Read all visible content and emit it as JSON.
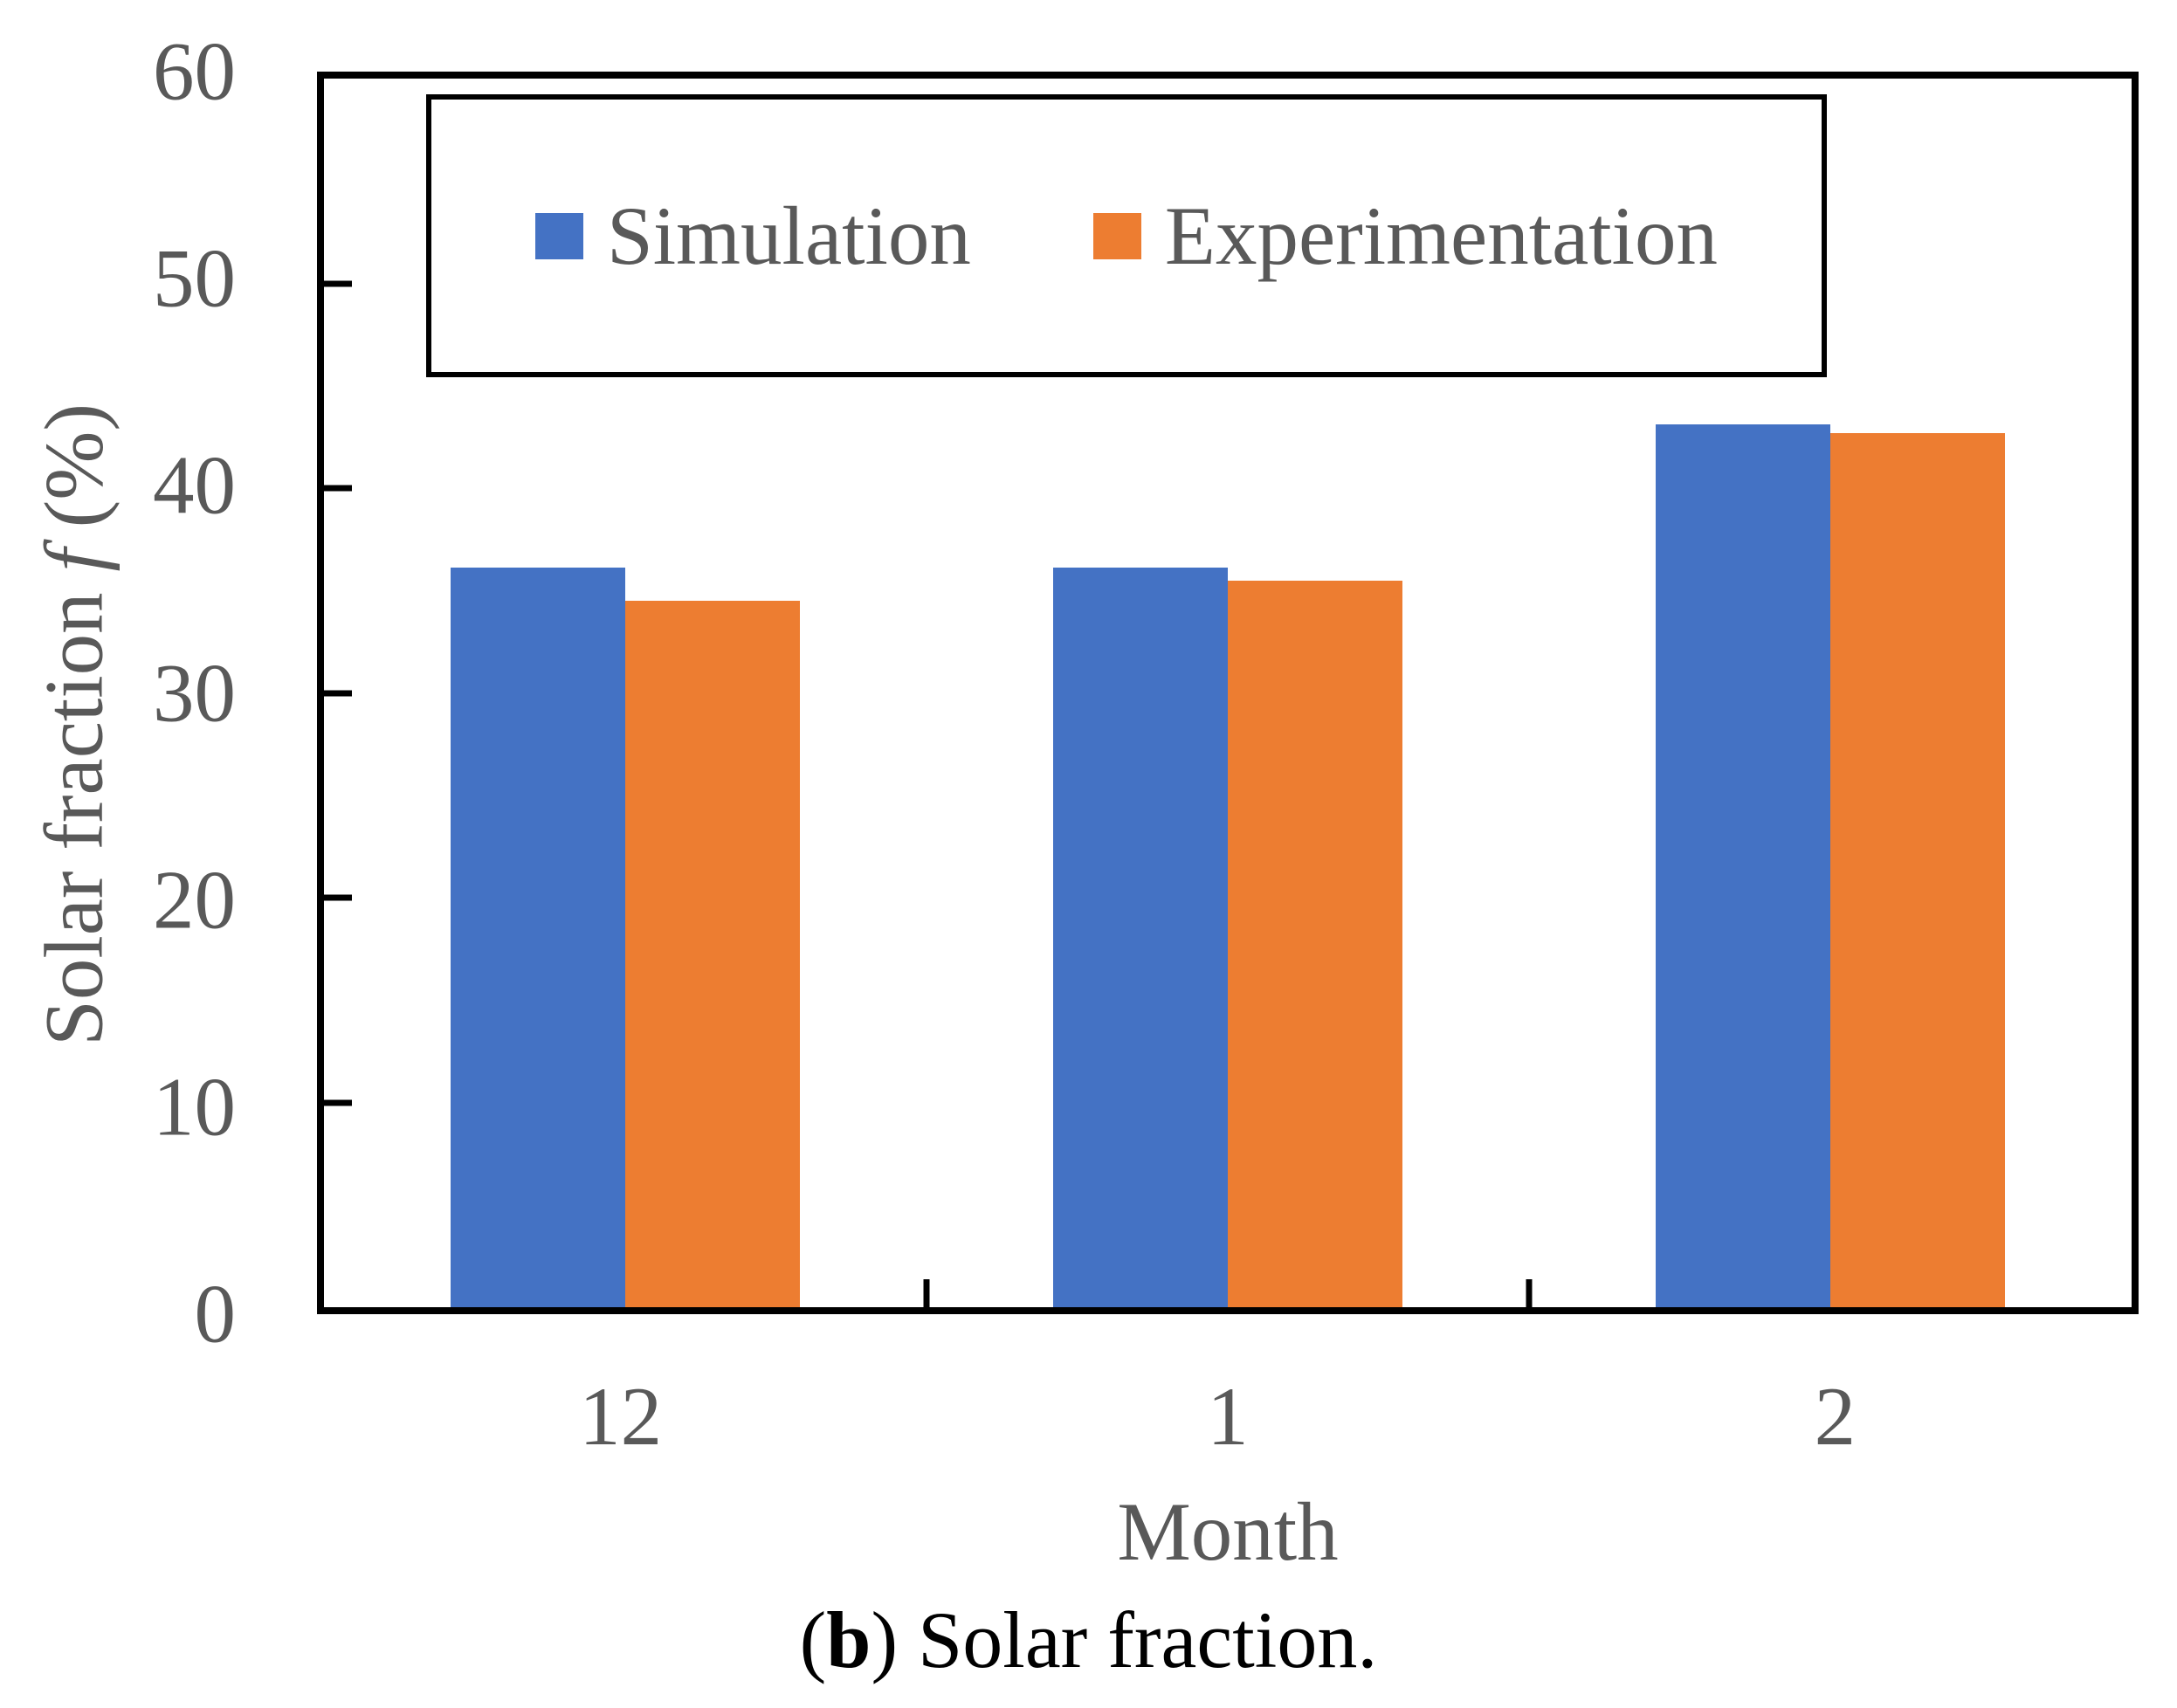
{
  "figure": {
    "caption": {
      "prefix": "(",
      "bold": "b",
      "suffix": ") Solar fraction."
    }
  },
  "chart_data": {
    "type": "bar",
    "title": "",
    "categories": [
      "12",
      "1",
      "2"
    ],
    "series": [
      {
        "name": "Simulation",
        "color": "#4472C4",
        "values": [
          36.1,
          36.1,
          43.1
        ]
      },
      {
        "name": "Experimentation",
        "color": "#ED7D31",
        "values": [
          34.5,
          35.5,
          42.7
        ]
      }
    ],
    "xlabel": "Month",
    "ylabel": {
      "prefix": "Solar fraction ",
      "italic": "f",
      "suffix": " (%)"
    },
    "ylim": [
      0,
      60
    ],
    "yticks": [
      0,
      10,
      20,
      30,
      40,
      50,
      60
    ],
    "grid": false,
    "legend_position": "top-inside",
    "axis_color": "#000000",
    "axis_text_color": "#595959",
    "caption_text_color": "#000000"
  }
}
